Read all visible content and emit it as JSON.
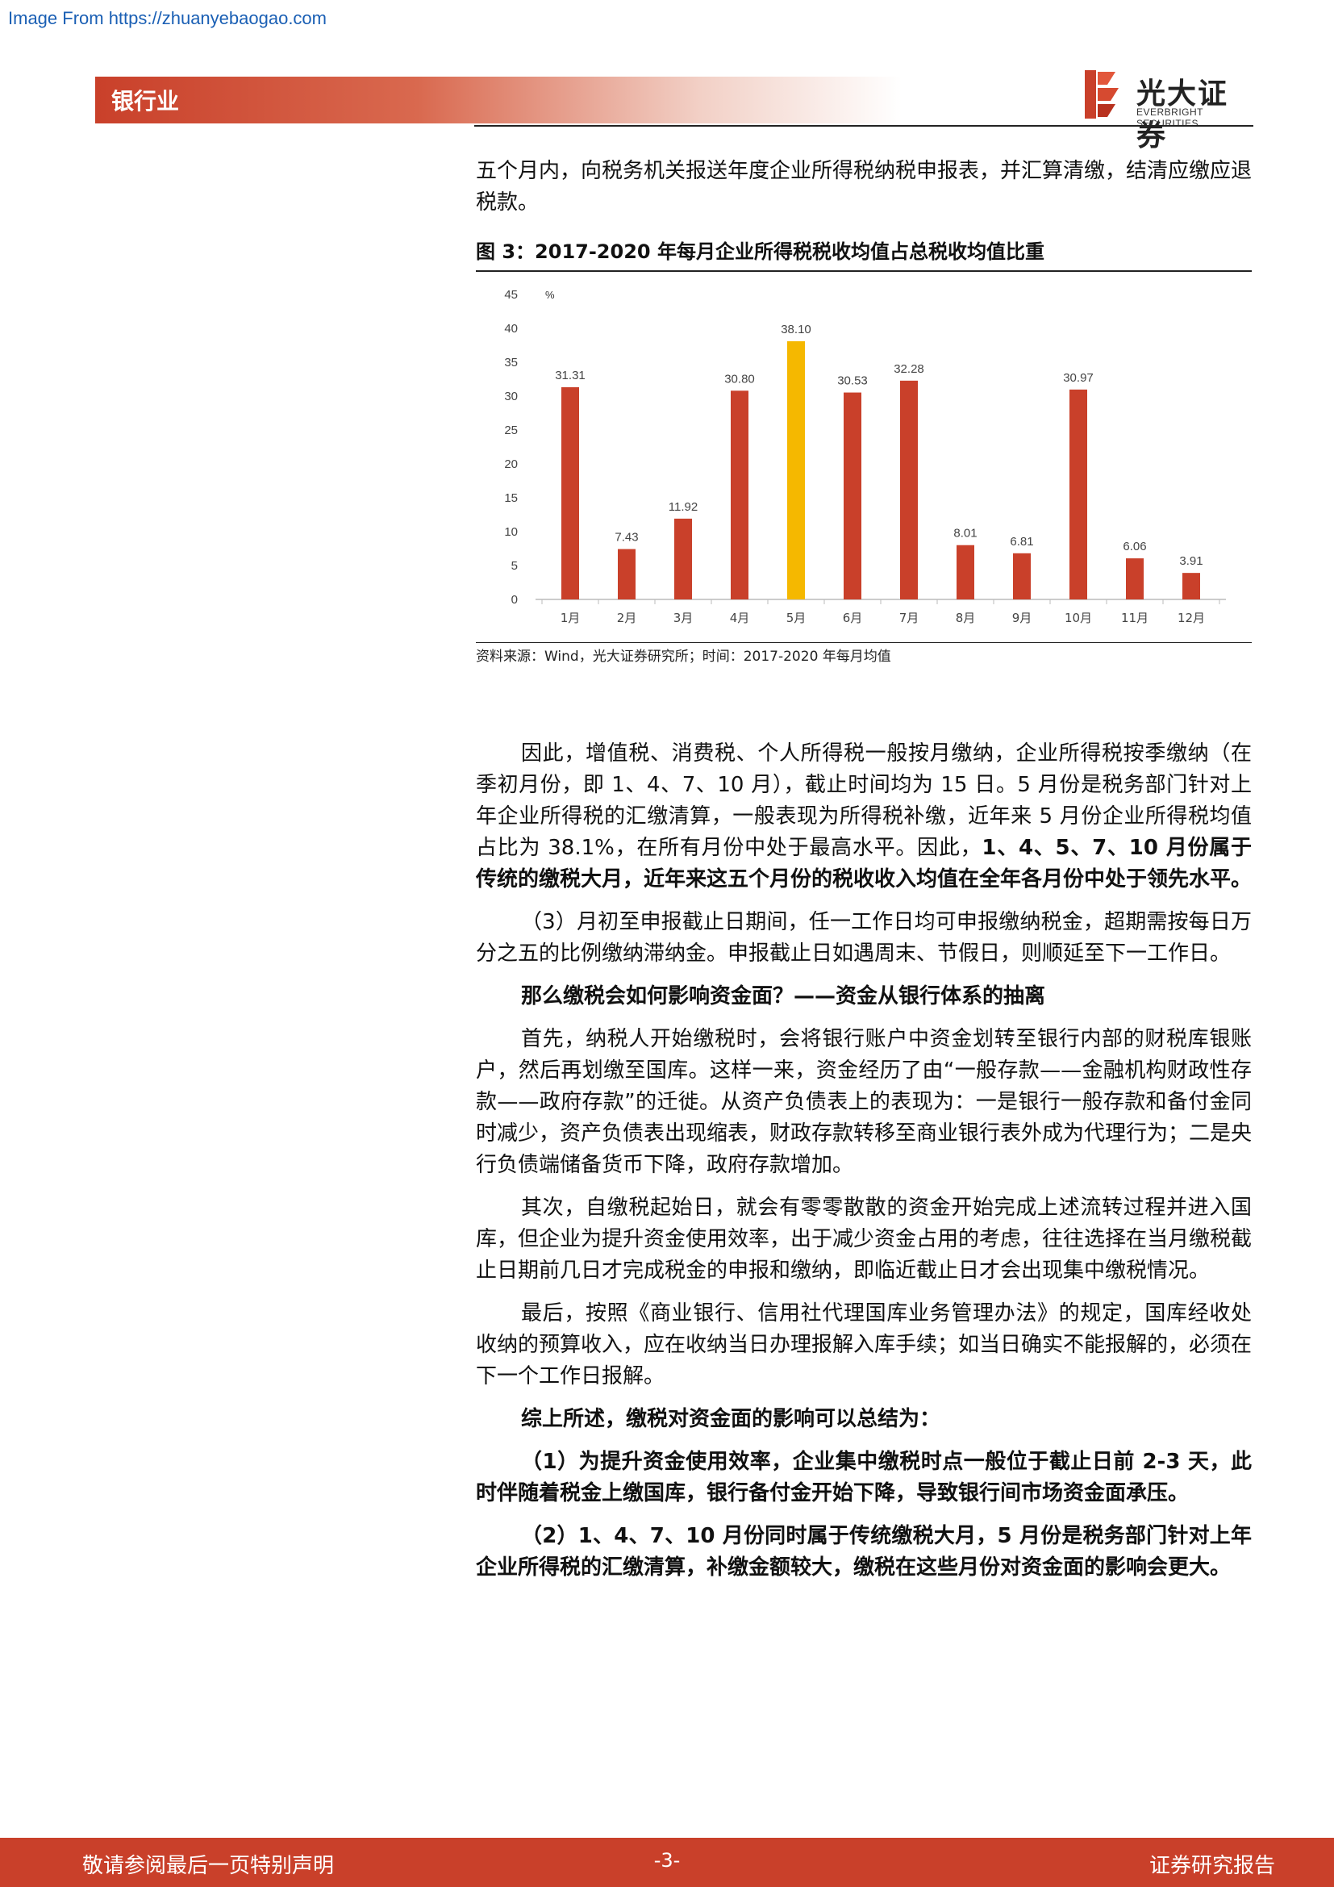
{
  "watermark": "Image From https://zhuanyebaogao.com",
  "header": {
    "section": "银行业",
    "logo_cn": "光大证券",
    "logo_en": "EVERBRIGHT SECURITIES"
  },
  "intro_text": "五个月内，向税务机关报送年度企业所得税纳税申报表，并汇算清缴，结清应缴应退税款。",
  "figure": {
    "title": "图 3：2017-2020 年每月企业所得税税收均值占总税收均值比重",
    "source": "资料来源：Wind，光大证券研究所；时间：2017-2020 年每月均值"
  },
  "chart_data": {
    "type": "bar",
    "ylabel": "%",
    "ylim": [
      0,
      45
    ],
    "yticks": [
      0,
      5,
      10,
      15,
      20,
      25,
      30,
      35,
      40,
      45
    ],
    "categories": [
      "1月",
      "2月",
      "3月",
      "4月",
      "5月",
      "6月",
      "7月",
      "8月",
      "9月",
      "10月",
      "11月",
      "12月"
    ],
    "values": [
      31.31,
      7.43,
      11.92,
      30.8,
      38.1,
      30.53,
      32.28,
      8.01,
      6.81,
      30.97,
      6.06,
      3.91
    ],
    "labels": [
      "31.31",
      "7.43",
      "11.92",
      "30.80",
      "38.10",
      "30.53",
      "32.28",
      "8.01",
      "6.81",
      "30.97",
      "6.06",
      "3.91"
    ],
    "colors": {
      "default": "#c9402a",
      "highlight": "#f5b800"
    },
    "highlight_index": 4,
    "grid": false
  },
  "body": {
    "p1_a": "因此，增值税、消费税、个人所得税一般按月缴纳，企业所得税按季缴纳（在季初月份，即 1、4、7、10 月），截止时间均为 15 日。5 月份是税务部门针对上年企业所得税的汇缴清算，一般表现为所得税补缴，近年来 5 月份企业所得税均值占比为 38.1%，在所有月份中处于最高水平。因此，",
    "p1_b": "1、4、5、7、10 月份属于传统的缴税大月，近年来这五个月份的税收收入均值在全年各月份中处于领先水平。",
    "p2": "（3）月初至申报截止日期间，任一工作日均可申报缴纳税金，超期需按每日万分之五的比例缴纳滞纳金。申报截止日如遇周末、节假日，则顺延至下一工作日。",
    "p3": "那么缴税会如何影响资金面？——资金从银行体系的抽离",
    "p4": "首先，纳税人开始缴税时，会将银行账户中资金划转至银行内部的财税库银账户，然后再划缴至国库。这样一来，资金经历了由“一般存款——金融机构财政性存款——政府存款”的迁徙。从资产负债表上的表现为：一是银行一般存款和备付金同时减少，资产负债表出现缩表，财政存款转移至商业银行表外成为代理行为；二是央行负债端储备货币下降，政府存款增加。",
    "p5": "其次，自缴税起始日，就会有零零散散的资金开始完成上述流转过程并进入国库，但企业为提升资金使用效率，出于减少资金占用的考虑，往往选择在当月缴税截止日期前几日才完成税金的申报和缴纳，即临近截止日才会出现集中缴税情况。",
    "p6": "最后，按照《商业银行、信用社代理国库业务管理办法》的规定，国库经收处收纳的预算收入，应在收纳当日办理报解入库手续；如当日确实不能报解的，必须在下一个工作日报解。",
    "p7": "综上所述，缴税对资金面的影响可以总结为：",
    "p8": "（1）为提升资金使用效率，企业集中缴税时点一般位于截止日前 2-3 天，此时伴随着税金上缴国库，银行备付金开始下降，导致银行间市场资金面承压。",
    "p9": "（2）1、4、7、10 月份同时属于传统缴税大月，5 月份是税务部门针对上年企业所得税的汇缴清算，补缴金额较大，缴税在这些月份对资金面的影响会更大。"
  },
  "footer": {
    "left": "敬请参阅最后一页特别声明",
    "page": "-3-",
    "right": "证券研究报告"
  }
}
